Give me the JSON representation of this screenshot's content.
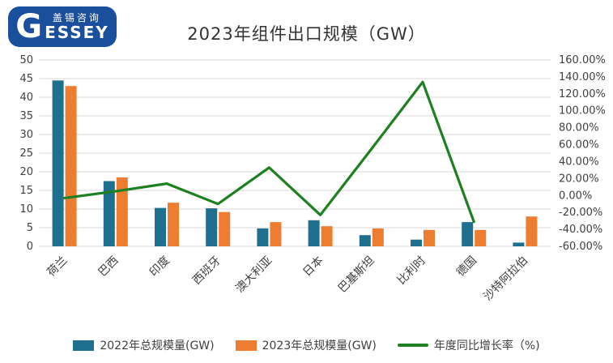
{
  "logo": {
    "letter_g": "G",
    "cn_text": "盖锡咨询",
    "en_rest": "ESSEY",
    "brand_blue": "#1a4f9e"
  },
  "chart": {
    "title": "2023年组件出口规模（GW）"
  },
  "chart_data": {
    "type": "bar",
    "title": "2023年组件出口规模（GW）",
    "categories": [
      "荷兰",
      "巴西",
      "印度",
      "西班牙",
      "澳大利亚",
      "日本",
      "巴基斯坦",
      "比利时",
      "德国",
      "沙特阿拉伯"
    ],
    "series": [
      {
        "name": "2022年总规模量(GW)",
        "type": "bar",
        "axis": "left",
        "color": "#1f6f8e",
        "values": [
          44.5,
          17.5,
          10.3,
          10.2,
          4.8,
          7.0,
          3.0,
          1.8,
          6.5,
          1.0
        ]
      },
      {
        "name": "2023年总规模量(GW)",
        "type": "bar",
        "axis": "left",
        "color": "#ed7d31",
        "values": [
          43.0,
          18.5,
          11.7,
          9.2,
          6.5,
          5.4,
          4.8,
          4.4,
          4.4,
          8.0
        ]
      },
      {
        "name": "年度同比增长率（%)",
        "type": "line",
        "axis": "right",
        "color": "#1e8021",
        "values": [
          -3,
          5,
          14,
          -10,
          33,
          -23,
          55,
          134,
          -31,
          null
        ]
      }
    ],
    "left_axis": {
      "min": 0,
      "max": 50,
      "step": 5,
      "ticks": [
        "0",
        "5",
        "10",
        "15",
        "20",
        "25",
        "30",
        "35",
        "40",
        "45",
        "50"
      ]
    },
    "right_axis": {
      "min": -60,
      "max": 160,
      "step": 20,
      "ticks": [
        "-60.00%",
        "-40.00%",
        "-20.00%",
        "0.00%",
        "20.00%",
        "40.00%",
        "60.00%",
        "80.00%",
        "100.00%",
        "120.00%",
        "140.00%",
        "160.00%"
      ]
    },
    "grid": true,
    "gridline_color": "#d9d9d9",
    "legend_position": "bottom"
  }
}
